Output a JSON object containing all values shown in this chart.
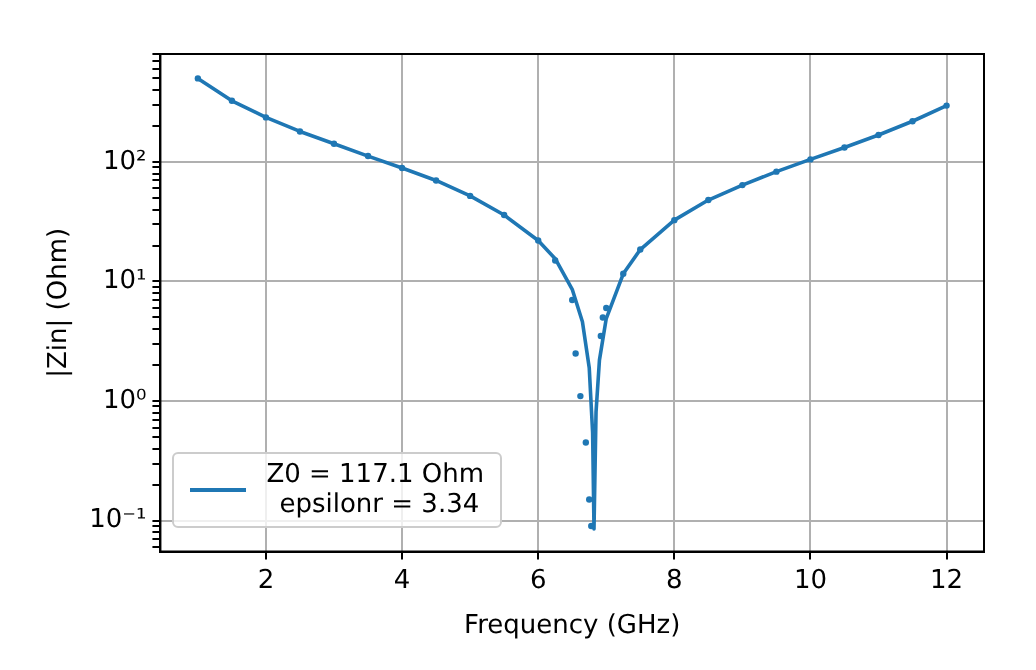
{
  "chart_data": {
    "type": "line",
    "xlabel": "Frequency (GHz)",
    "ylabel": "|Zin| (Ohm)",
    "log": "y",
    "grid": true,
    "legend": "bottom left",
    "xlim": [
      0.45,
      12.55
    ],
    "xticks": [
      2,
      4,
      6,
      8,
      10,
      12
    ],
    "ylim": [
      0.055,
      800
    ],
    "yticks": [
      {
        "value": 0.06,
        "label": null
      },
      {
        "value": 0.07,
        "label": null
      },
      {
        "value": 0.08,
        "label": null
      },
      {
        "value": 0.09,
        "label": null
      },
      {
        "value": 0.1,
        "label": "10⁻¹"
      },
      {
        "value": 0.2,
        "label": null
      },
      {
        "value": 0.3,
        "label": null
      },
      {
        "value": 0.4,
        "label": null
      },
      {
        "value": 0.5,
        "label": null
      },
      {
        "value": 0.6,
        "label": null
      },
      {
        "value": 0.7,
        "label": null
      },
      {
        "value": 0.8,
        "label": null
      },
      {
        "value": 0.9,
        "label": null
      },
      {
        "value": 1,
        "label": "10⁰"
      },
      {
        "value": 2,
        "label": null
      },
      {
        "value": 3,
        "label": null
      },
      {
        "value": 4,
        "label": null
      },
      {
        "value": 5,
        "label": null
      },
      {
        "value": 6,
        "label": null
      },
      {
        "value": 7,
        "label": null
      },
      {
        "value": 8,
        "label": null
      },
      {
        "value": 9,
        "label": null
      },
      {
        "value": 10,
        "label": "10¹"
      },
      {
        "value": 20,
        "label": null
      },
      {
        "value": 30,
        "label": null
      },
      {
        "value": 40,
        "label": null
      },
      {
        "value": 50,
        "label": null
      },
      {
        "value": 60,
        "label": null
      },
      {
        "value": 70,
        "label": null
      },
      {
        "value": 80,
        "label": null
      },
      {
        "value": 90,
        "label": null
      },
      {
        "value": 100,
        "label": "10²"
      },
      {
        "value": 200,
        "label": null
      },
      {
        "value": 300,
        "label": null
      },
      {
        "value": 400,
        "label": null
      },
      {
        "value": 500,
        "label": null
      },
      {
        "value": 600,
        "label": null
      },
      {
        "value": 700,
        "label": null
      },
      {
        "value": 800,
        "label": null
      }
    ],
    "series": [
      {
        "type": "scatter",
        "color": "#1f77b4",
        "marker": "circle",
        "x": [
          1,
          1.5,
          2,
          2.5,
          3,
          3.5,
          4,
          4.5,
          5,
          5.5,
          6,
          6.25,
          6.5,
          6.55,
          6.62,
          6.7,
          6.75,
          6.78,
          6.92,
          6.95,
          7,
          7.25,
          7.5,
          8,
          8.5,
          9,
          9.5,
          10,
          10.5,
          11,
          11.5,
          12
        ],
        "values": [
          500,
          325,
          236,
          180,
          142,
          112,
          89,
          70,
          52,
          36,
          22,
          15,
          7,
          2.5,
          1.1,
          0.45,
          0.15,
          0.09,
          3.5,
          5,
          6,
          11.6,
          18.5,
          32.6,
          48,
          64,
          83,
          105,
          132,
          168,
          219,
          296
        ]
      },
      {
        "name": "Z0 = 117.1 Ohm\n epsilonr = 3.34",
        "color": "#1f77b4",
        "marker": "none",
        "line_style": "solid",
        "x": [
          1,
          1.5,
          2,
          2.5,
          3,
          3.5,
          4,
          4.5,
          5,
          5.5,
          6,
          6.25,
          6.5,
          6.65,
          6.75,
          6.8,
          6.82,
          6.85,
          6.9,
          7,
          7.25,
          7.5,
          8,
          8.5,
          9,
          9.5,
          10,
          10.5,
          11,
          11.5,
          12
        ],
        "values": [
          500,
          325,
          236,
          180,
          142,
          112,
          89,
          70,
          52,
          36,
          22,
          15.5,
          8.6,
          4.6,
          1.9,
          0.54,
          0.085,
          0.81,
          2.2,
          4.9,
          11.6,
          18.5,
          32.6,
          48,
          64,
          83,
          105,
          132,
          168,
          219,
          296
        ]
      }
    ]
  }
}
